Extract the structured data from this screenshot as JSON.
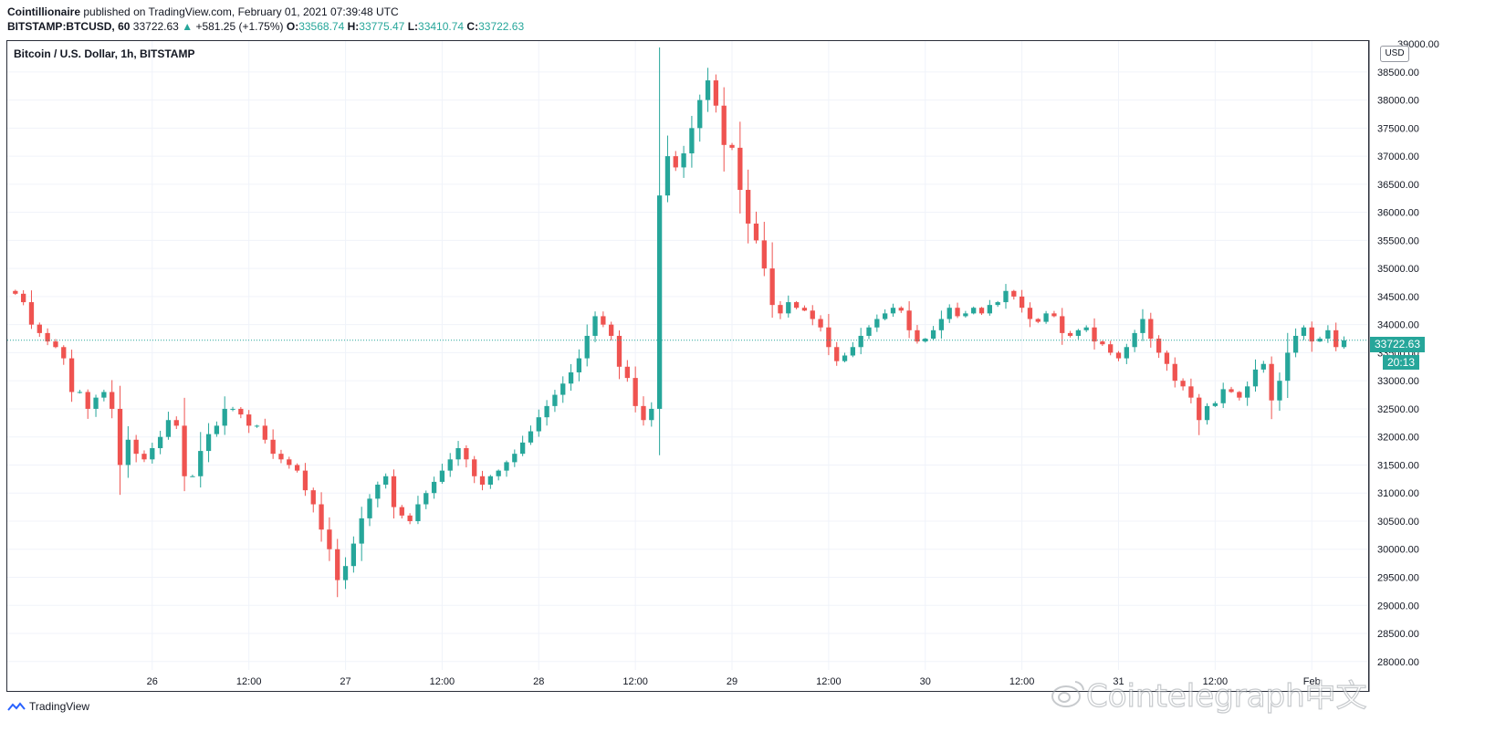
{
  "header": {
    "author": "Cointillionaire",
    "published_text": "published on TradingView.com, February 01, 2021 07:39:48 UTC",
    "symbol": "BITSTAMP:BTCUSD, 60",
    "last_price": "33722.63",
    "change": "+581.25 (+1.75%)",
    "o_label": "O:",
    "o_value": "33568.74",
    "h_label": "H:",
    "h_value": "33775.47",
    "l_label": "L:",
    "l_value": "33410.74",
    "c_label": "C:",
    "c_value": "33722.63"
  },
  "chart_title": "Bitcoin / U.S. Dollar, 1h, BITSTAMP",
  "currency_badge": "USD",
  "price_label": "33722.63",
  "countdown": "20:13",
  "footer": {
    "brand": "TradingView"
  },
  "watermark": "Cointelegraph中文",
  "colors": {
    "up": "#26a69a",
    "down": "#ef5350",
    "grid": "#f0f3fa",
    "border": "#2a2e39"
  },
  "chart_data": {
    "type": "candlestick",
    "title": "Bitcoin / U.S. Dollar, 1h, BITSTAMP",
    "ylim": [
      27850,
      39050
    ],
    "y_ticks": [
      28000,
      28500,
      29000,
      29500,
      30000,
      30500,
      31000,
      31500,
      32000,
      32500,
      33000,
      33500,
      34000,
      34500,
      35000,
      35500,
      36000,
      36500,
      37000,
      37500,
      38000,
      38500
    ],
    "x_ticks": [
      {
        "label": "26",
        "hours": 21
      },
      {
        "label": "12:00",
        "hours": 33
      },
      {
        "label": "27",
        "hours": 45
      },
      {
        "label": "12:00",
        "hours": 57
      },
      {
        "label": "28",
        "hours": 69
      },
      {
        "label": "12:00",
        "hours": 81
      },
      {
        "label": "29",
        "hours": 93
      },
      {
        "label": "12:00",
        "hours": 105
      },
      {
        "label": "30",
        "hours": 117
      },
      {
        "label": "12:00",
        "hours": 129
      },
      {
        "label": "31",
        "hours": 141
      },
      {
        "label": "12:00",
        "hours": 153
      },
      {
        "label": "Feb",
        "hours": 165
      }
    ],
    "x_range_hours": [
      3,
      172
    ],
    "last_price": 33722.63,
    "path_points": [
      [
        3,
        34600
      ],
      [
        4,
        34550
      ],
      [
        5,
        34400
      ],
      [
        6,
        34000
      ],
      [
        7,
        33850
      ],
      [
        8,
        33700
      ],
      [
        9,
        33600
      ],
      [
        10,
        33400
      ],
      [
        11,
        32800
      ],
      [
        12,
        32800
      ],
      [
        13,
        32500
      ],
      [
        14,
        32700
      ],
      [
        15,
        32800
      ],
      [
        16,
        32500
      ],
      [
        17,
        31500
      ],
      [
        18,
        31950
      ],
      [
        19,
        31700
      ],
      [
        20,
        31600
      ],
      [
        21,
        31800
      ],
      [
        22,
        32000
      ],
      [
        23,
        32300
      ],
      [
        24,
        32200
      ],
      [
        25,
        31300
      ],
      [
        26,
        31300
      ],
      [
        27,
        31750
      ],
      [
        28,
        32050
      ],
      [
        29,
        32200
      ],
      [
        30,
        32500
      ],
      [
        31,
        32500
      ],
      [
        32,
        32400
      ],
      [
        33,
        32200
      ],
      [
        34,
        32200
      ],
      [
        35,
        31950
      ],
      [
        36,
        31700
      ],
      [
        37,
        31600
      ],
      [
        38,
        31500
      ],
      [
        39,
        31400
      ],
      [
        40,
        31050
      ],
      [
        41,
        30800
      ],
      [
        42,
        30350
      ],
      [
        43,
        30000
      ],
      [
        44,
        29450
      ],
      [
        45,
        29700
      ],
      [
        46,
        30100
      ],
      [
        47,
        30550
      ],
      [
        48,
        30900
      ],
      [
        49,
        31150
      ],
      [
        50,
        31300
      ],
      [
        51,
        30750
      ],
      [
        52,
        30600
      ],
      [
        53,
        30500
      ],
      [
        54,
        30800
      ],
      [
        55,
        31000
      ],
      [
        56,
        31200
      ],
      [
        57,
        31400
      ],
      [
        58,
        31600
      ],
      [
        59,
        31800
      ],
      [
        60,
        31600
      ],
      [
        61,
        31300
      ],
      [
        62,
        31150
      ],
      [
        63,
        31300
      ],
      [
        64,
        31400
      ],
      [
        65,
        31550
      ],
      [
        66,
        31700
      ],
      [
        67,
        31900
      ],
      [
        68,
        32100
      ],
      [
        69,
        32350
      ],
      [
        70,
        32550
      ],
      [
        71,
        32750
      ],
      [
        72,
        32950
      ],
      [
        73,
        33150
      ],
      [
        74,
        33400
      ],
      [
        75,
        33800
      ],
      [
        76,
        34150
      ],
      [
        77,
        34000
      ],
      [
        78,
        33800
      ],
      [
        79,
        33250
      ],
      [
        80,
        33050
      ],
      [
        81,
        32550
      ],
      [
        82,
        32300
      ],
      [
        83,
        32500
      ],
      [
        84,
        36300
      ],
      [
        85,
        37000
      ],
      [
        86,
        36800
      ],
      [
        87,
        37050
      ],
      [
        88,
        37500
      ],
      [
        89,
        38000
      ],
      [
        90,
        38350
      ],
      [
        91,
        37900
      ],
      [
        92,
        37200
      ],
      [
        93,
        37150
      ],
      [
        94,
        36400
      ],
      [
        95,
        35800
      ],
      [
        96,
        35500
      ],
      [
        97,
        35000
      ],
      [
        98,
        34350
      ],
      [
        99,
        34200
      ],
      [
        100,
        34400
      ],
      [
        101,
        34300
      ],
      [
        102,
        34250
      ],
      [
        103,
        34100
      ],
      [
        104,
        33950
      ],
      [
        105,
        33600
      ],
      [
        106,
        33350
      ],
      [
        107,
        33450
      ],
      [
        108,
        33600
      ],
      [
        109,
        33800
      ],
      [
        110,
        33950
      ],
      [
        111,
        34100
      ],
      [
        112,
        34200
      ],
      [
        113,
        34300
      ],
      [
        114,
        34250
      ],
      [
        115,
        33900
      ],
      [
        116,
        33700
      ],
      [
        117,
        33750
      ],
      [
        118,
        33900
      ],
      [
        119,
        34100
      ],
      [
        120,
        34300
      ],
      [
        121,
        34150
      ],
      [
        122,
        34200
      ],
      [
        123,
        34300
      ],
      [
        124,
        34200
      ],
      [
        125,
        34350
      ],
      [
        126,
        34400
      ],
      [
        127,
        34600
      ],
      [
        128,
        34500
      ],
      [
        129,
        34300
      ],
      [
        130,
        34100
      ],
      [
        131,
        34050
      ],
      [
        132,
        34200
      ],
      [
        133,
        34150
      ],
      [
        134,
        33850
      ],
      [
        135,
        33800
      ],
      [
        136,
        33900
      ],
      [
        137,
        33950
      ],
      [
        138,
        33700
      ],
      [
        139,
        33650
      ],
      [
        140,
        33500
      ],
      [
        141,
        33400
      ],
      [
        142,
        33600
      ],
      [
        143,
        33850
      ],
      [
        144,
        34100
      ],
      [
        145,
        33750
      ],
      [
        146,
        33500
      ],
      [
        147,
        33300
      ],
      [
        148,
        33000
      ],
      [
        149,
        32900
      ],
      [
        150,
        32700
      ],
      [
        151,
        32300
      ],
      [
        152,
        32550
      ],
      [
        153,
        32600
      ],
      [
        154,
        32850
      ],
      [
        155,
        32800
      ],
      [
        156,
        32700
      ],
      [
        157,
        32900
      ],
      [
        158,
        33200
      ],
      [
        159,
        33300
      ],
      [
        160,
        32650
      ],
      [
        161,
        33000
      ],
      [
        162,
        33500
      ],
      [
        163,
        33800
      ],
      [
        164,
        33950
      ],
      [
        165,
        33700
      ],
      [
        166,
        33750
      ],
      [
        167,
        33900
      ],
      [
        168,
        33600
      ],
      [
        169,
        33722.63
      ]
    ]
  }
}
